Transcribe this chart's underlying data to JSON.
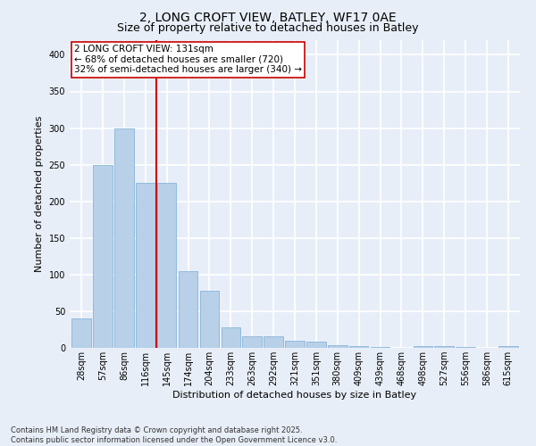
{
  "title": "2, LONG CROFT VIEW, BATLEY, WF17 0AE",
  "subtitle": "Size of property relative to detached houses in Batley",
  "xlabel": "Distribution of detached houses by size in Batley",
  "ylabel": "Number of detached properties",
  "categories": [
    "28sqm",
    "57sqm",
    "86sqm",
    "116sqm",
    "145sqm",
    "174sqm",
    "204sqm",
    "233sqm",
    "263sqm",
    "292sqm",
    "321sqm",
    "351sqm",
    "380sqm",
    "409sqm",
    "439sqm",
    "468sqm",
    "498sqm",
    "527sqm",
    "556sqm",
    "586sqm",
    "615sqm"
  ],
  "values": [
    40,
    250,
    300,
    225,
    225,
    105,
    78,
    28,
    16,
    16,
    10,
    9,
    4,
    2,
    1,
    0,
    3,
    3,
    1,
    0,
    2
  ],
  "bar_color": "#b8d0e8",
  "bar_edge_color": "#7aadd4",
  "vline_x_index": 3,
  "vline_color": "#cc0000",
  "annotation_text": "2 LONG CROFT VIEW: 131sqm\n← 68% of detached houses are smaller (720)\n32% of semi-detached houses are larger (340) →",
  "annotation_box_color": "#ffffff",
  "annotation_box_edge": "#cc0000",
  "ylim": [
    0,
    420
  ],
  "yticks": [
    0,
    50,
    100,
    150,
    200,
    250,
    300,
    350,
    400
  ],
  "background_color": "#e8eef8",
  "grid_color": "#ffffff",
  "footer_text": "Contains HM Land Registry data © Crown copyright and database right 2025.\nContains public sector information licensed under the Open Government Licence v3.0.",
  "title_fontsize": 10,
  "subtitle_fontsize": 9,
  "axis_label_fontsize": 8,
  "tick_fontsize": 7,
  "annotation_fontsize": 7.5,
  "footer_fontsize": 6
}
